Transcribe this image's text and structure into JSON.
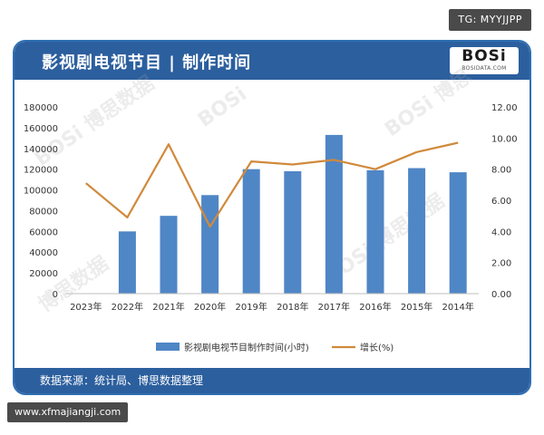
{
  "badges": {
    "tg": "TG: MYYJJPP",
    "url": "www.xfmajiangji.com"
  },
  "header": {
    "title": "影视剧电视节目 | 制作时间"
  },
  "logo": {
    "main": "BOSi",
    "sub": "BOSIDATA.COM"
  },
  "footer": {
    "source": "数据来源：统计局、博思数据整理"
  },
  "colors": {
    "header_bg": "#2c5f9e",
    "bar": "#4f86c6",
    "line": "#d08a3c"
  },
  "chart_data": {
    "type": "bar",
    "categories": [
      "2023年",
      "2022年",
      "2021年",
      "2020年",
      "2019年",
      "2018年",
      "2017年",
      "2016年",
      "2015年",
      "2014年"
    ],
    "series": [
      {
        "name": "影视剧电视节目制作时间(小时)",
        "type": "bar",
        "axis": "left",
        "values": [
          0,
          60000,
          75000,
          95000,
          120000,
          118000,
          153000,
          119000,
          121000,
          117000
        ]
      },
      {
        "name": "增长(%)",
        "type": "line",
        "axis": "right",
        "values": [
          7.1,
          4.9,
          9.6,
          4.3,
          8.5,
          8.3,
          8.6,
          8.0,
          9.1,
          9.7
        ]
      }
    ],
    "y_left": {
      "range": [
        0,
        180000
      ],
      "ticks": [
        "0",
        "20000",
        "40000",
        "60000",
        "80000",
        "100000",
        "120000",
        "140000",
        "160000",
        "180000"
      ]
    },
    "y_right": {
      "range": [
        0,
        12
      ],
      "ticks": [
        "0.00",
        "2.00",
        "4.00",
        "6.00",
        "8.00",
        "10.00",
        "12.00"
      ]
    },
    "grid": false,
    "legend_position": "bottom"
  }
}
